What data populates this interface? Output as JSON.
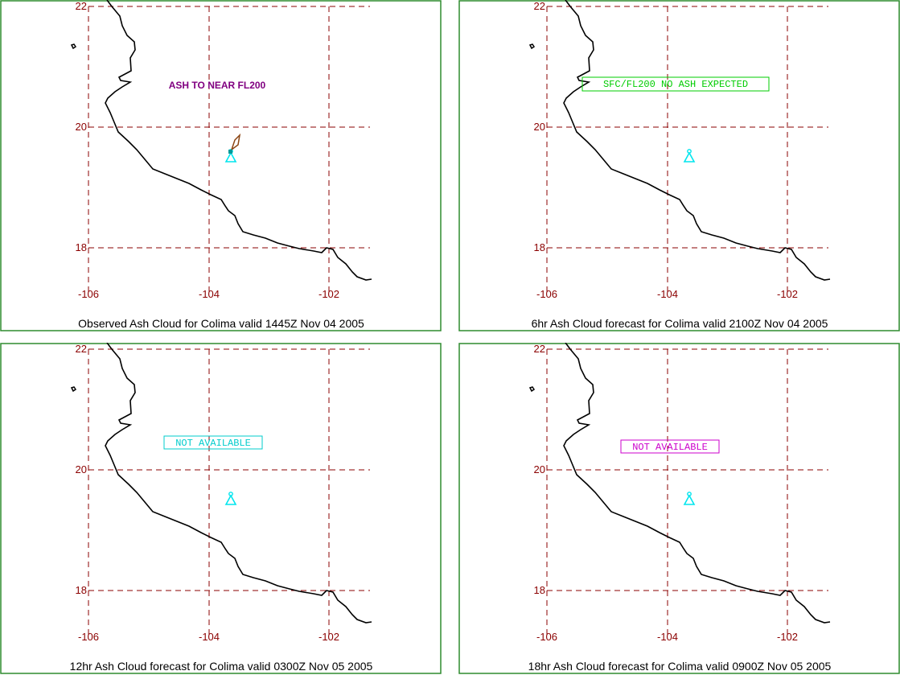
{
  "colors": {
    "frame": "#2e8b2e",
    "grid": "#8b0000",
    "coast": "#000000",
    "volcano": "#00e5ee",
    "plume": "#8b4513"
  },
  "axis_labels": {
    "lon": [
      "-106",
      "-104",
      "-102"
    ],
    "lat": [
      "22",
      "20",
      "18"
    ]
  },
  "panels": [
    {
      "caption": "Observed Ash Cloud for Colima valid 1445Z Nov 04 2005",
      "note": "ASH TO NEAR FL200",
      "note_color": "#800080",
      "note_boxed": false,
      "plume": true
    },
    {
      "caption": "6hr Ash Cloud forecast for Colima valid 2100Z Nov 04 2005",
      "note": "SFC/FL200 NO ASH EXPECTED",
      "note_color": "#00cc00",
      "note_boxed": true,
      "plume": false
    },
    {
      "caption": "12hr Ash Cloud forecast for Colima valid 0300Z Nov 05 2005",
      "note": "NOT AVAILABLE",
      "note_color": "#00cccc",
      "note_boxed": true,
      "plume": false
    },
    {
      "caption": "18hr Ash Cloud forecast for Colima valid 0900Z Nov 05 2005",
      "note": "NOT AVAILABLE",
      "note_color": "#cc00cc",
      "note_boxed": true,
      "plume": false
    }
  ]
}
